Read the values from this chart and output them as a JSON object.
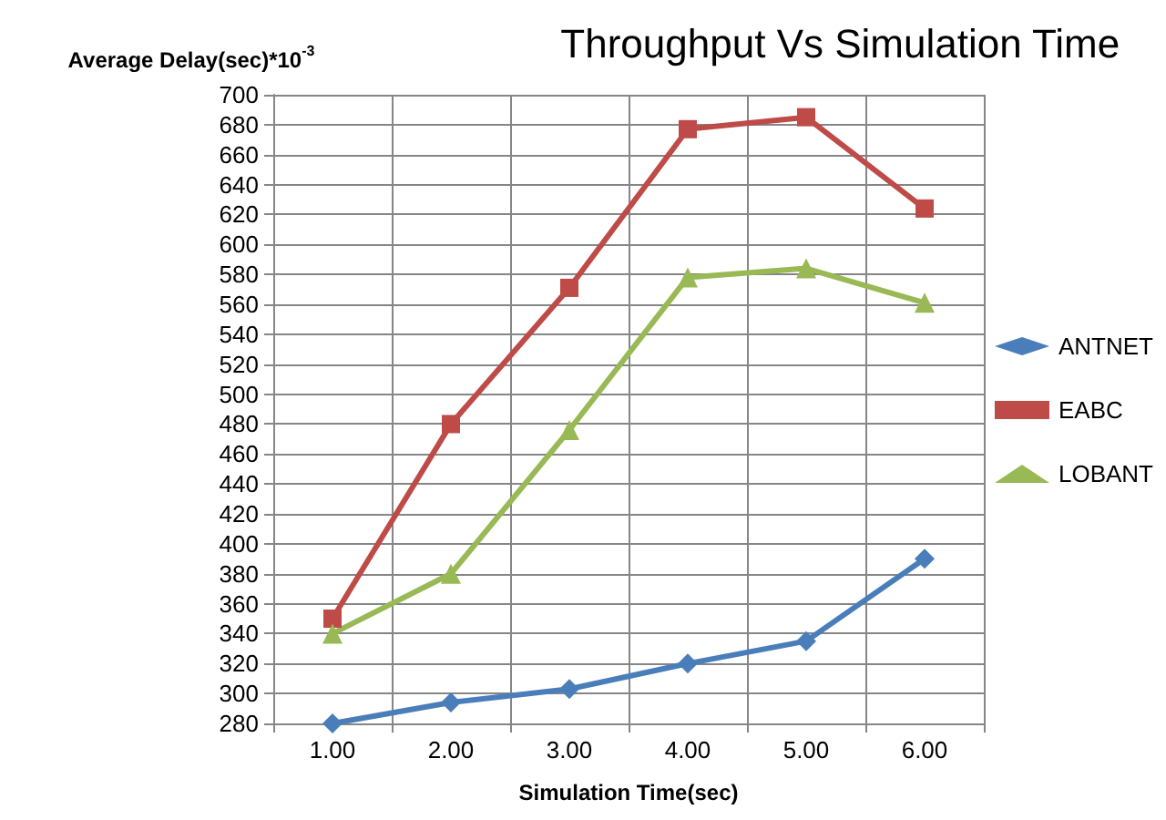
{
  "chart_data": {
    "type": "line",
    "title": "Throughput Vs Simulation Time",
    "xlabel": "Simulation Time(sec)",
    "ylabel": "Average Delay(sec)*10$^{-3}$",
    "categories": [
      "1.00",
      "2.00",
      "3.00",
      "4.00",
      "5.00",
      "6.00"
    ],
    "series": [
      {
        "name": "ANTNET",
        "color": "#4a7ebb",
        "marker": "diamond",
        "values": [
          280,
          294,
          303,
          320,
          335,
          390
        ]
      },
      {
        "name": "EABC",
        "color": "#be4b48",
        "marker": "square",
        "values": [
          350,
          480,
          571,
          677,
          685,
          624
        ]
      },
      {
        "name": "LOBANT",
        "color": "#98b954",
        "marker": "triangle",
        "values": [
          340,
          380,
          476,
          578,
          584,
          561
        ]
      }
    ],
    "ylim": [
      280,
      700
    ],
    "yticks": [
      280,
      300,
      320,
      340,
      360,
      380,
      400,
      420,
      440,
      460,
      480,
      500,
      520,
      540,
      560,
      580,
      600,
      620,
      640,
      660,
      680,
      700
    ],
    "grid": true,
    "legend": "right",
    "line_style": "solid"
  }
}
